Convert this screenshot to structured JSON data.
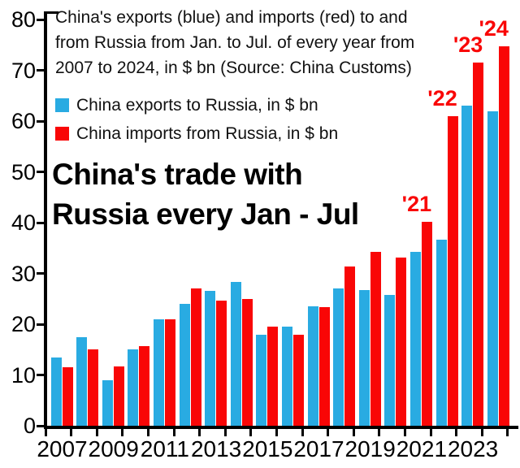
{
  "note": {
    "lines": [
      "China's exports (blue) and imports (red) to and",
      "from Russia from Jan. to Jul. of every year from",
      "2007 to 2024, in $ bn (Source: China Customs)"
    ]
  },
  "chart_data": {
    "type": "bar",
    "title": "China's trade with Russia every Jan - Jul",
    "categories": [
      "2007",
      "2008",
      "2009",
      "2010",
      "2011",
      "2012",
      "2013",
      "2014",
      "2015",
      "2016",
      "2017",
      "2018",
      "2019",
      "2020",
      "2021",
      "2022",
      "2023",
      "2024"
    ],
    "series": [
      {
        "name": "China exports to Russia, in $ bn",
        "color": "#29abe2",
        "values": [
          13.5,
          17.5,
          9.0,
          15.0,
          21.0,
          24.0,
          26.5,
          28.3,
          18.0,
          19.5,
          23.6,
          27.0,
          26.8,
          25.8,
          34.3,
          36.6,
          63.0,
          62.0
        ]
      },
      {
        "name": "China imports from Russia, in $ bn",
        "color": "#f90606",
        "values": [
          11.6,
          15.0,
          11.7,
          15.7,
          21.0,
          27.0,
          24.6,
          25.0,
          19.6,
          18.0,
          23.4,
          31.3,
          34.2,
          33.2,
          40.2,
          61.0,
          71.5,
          74.8
        ]
      }
    ],
    "ylabel": "",
    "xlabel": "",
    "ylim": [
      0,
      80
    ],
    "ytick_step": 10,
    "xtick_labels": [
      "2007",
      "2009",
      "2011",
      "2013",
      "2015",
      "2017",
      "2019",
      "2021",
      "2023"
    ],
    "annotations": [
      {
        "text": "'21",
        "category": "2021"
      },
      {
        "text": "'22",
        "category": "2022"
      },
      {
        "text": "'23",
        "category": "2023"
      },
      {
        "text": "'24",
        "category": "2024"
      }
    ],
    "grid": false,
    "legend_position": "top-left",
    "axis_color": "#000000"
  }
}
